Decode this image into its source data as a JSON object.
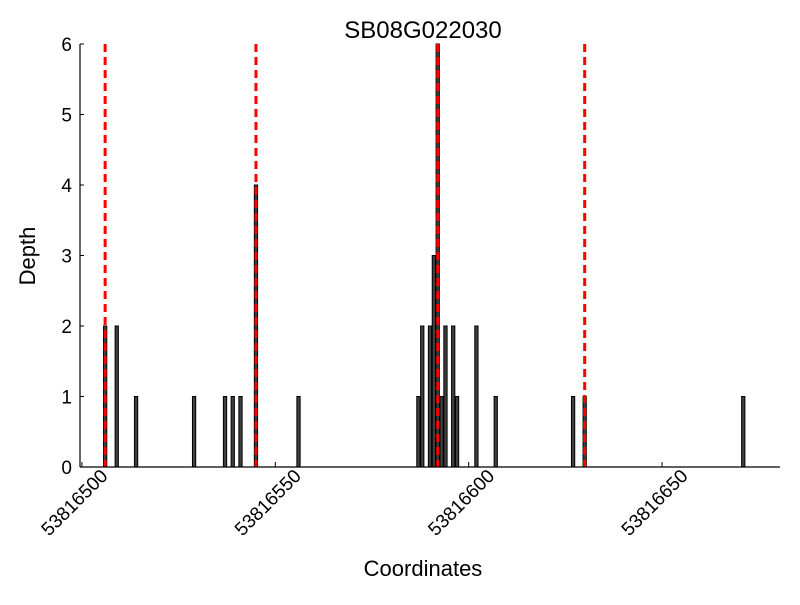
{
  "chart_data": {
    "type": "bar",
    "title": "SB08G022030",
    "xlabel": "Coordinates",
    "ylabel": "Depth",
    "xlim": [
      53816499.5,
      53816680.5
    ],
    "ylim": [
      0,
      6
    ],
    "xticks": [
      53816500,
      53816550,
      53816600,
      53816650
    ],
    "yticks": [
      0,
      1,
      2,
      3,
      4,
      5,
      6
    ],
    "grid": false,
    "bar_color": "#404040",
    "edge_color": "#000000",
    "line_color": "#ff0000",
    "x": [
      53816506,
      53816509,
      53816514,
      53816529,
      53816537,
      53816539,
      53816541,
      53816545,
      53816556,
      53816587,
      53816588,
      53816590,
      53816591,
      53816592,
      53816593,
      53816594,
      53816596,
      53816597,
      53816602,
      53816607,
      53816627,
      53816630,
      53816671
    ],
    "values": [
      2,
      2,
      1,
      1,
      1,
      1,
      1,
      4,
      1,
      1,
      2,
      2,
      3,
      6,
      1,
      2,
      2,
      1,
      2,
      1,
      1,
      1,
      1
    ],
    "vlines": [
      53816506,
      53816545,
      53816592,
      53816630
    ]
  }
}
